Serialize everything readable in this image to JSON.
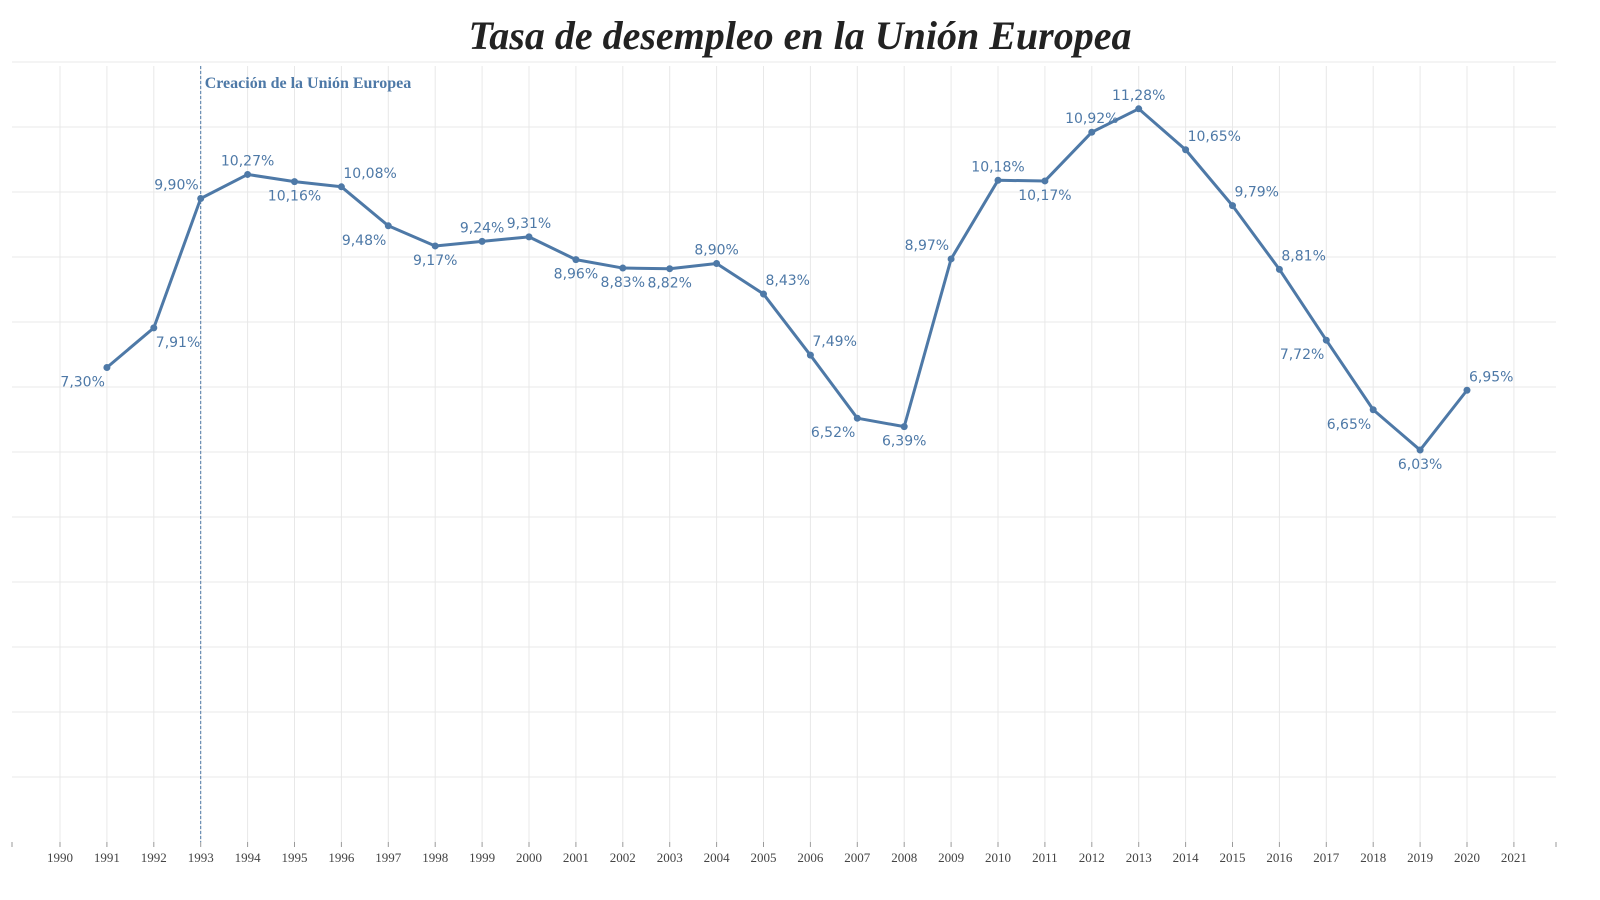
{
  "chart_data": {
    "type": "line",
    "title": "Tasa de desempleo en la Unión Europea",
    "xlabel": "",
    "ylabel": "",
    "x_ticks": [
      "1990",
      "1991",
      "1992",
      "1993",
      "1994",
      "1995",
      "1996",
      "1997",
      "1998",
      "1999",
      "2000",
      "2001",
      "2002",
      "2003",
      "2004",
      "2005",
      "2006",
      "2007",
      "2008",
      "2009",
      "2010",
      "2011",
      "2012",
      "2013",
      "2014",
      "2015",
      "2016",
      "2017",
      "2018",
      "2019",
      "2020",
      "2021"
    ],
    "x_range": [
      1990,
      2021
    ],
    "y_range": [
      0,
      12
    ],
    "grid": true,
    "legend": "none",
    "color": "#4e79a7",
    "series": [
      {
        "x": [
          1991,
          1992,
          1993,
          1994,
          1995,
          1996,
          1997,
          1998,
          1999,
          2000,
          2001,
          2002,
          2003,
          2004,
          2005,
          2006,
          2007,
          2008,
          2009,
          2010,
          2011,
          2012,
          2013,
          2014,
          2015,
          2016,
          2017,
          2018,
          2019,
          2020
        ],
        "values": [
          7.3,
          7.91,
          9.9,
          10.27,
          10.16,
          10.08,
          9.48,
          9.17,
          9.24,
          9.31,
          8.96,
          8.83,
          8.82,
          8.9,
          8.43,
          7.49,
          6.52,
          6.39,
          8.97,
          10.18,
          10.17,
          10.92,
          11.28,
          10.65,
          9.79,
          8.81,
          7.72,
          6.65,
          6.03,
          6.95
        ],
        "labels": [
          "7,30%",
          "7,91%",
          "9,90%",
          "10,27%",
          "10,16%",
          "10,08%",
          "9,48%",
          "9,17%",
          "9,24%",
          "9,31%",
          "8,96%",
          "8,83%",
          "8,82%",
          "8,90%",
          "8,43%",
          "7,49%",
          "6,52%",
          "6,39%",
          "8,97%",
          "10,18%",
          "10,17%",
          "10,92%",
          "11,28%",
          "10,65%",
          "9,79%",
          "8,81%",
          "7,72%",
          "6,65%",
          "6,03%",
          "6,95%"
        ]
      }
    ],
    "annotation": {
      "x": 1993,
      "text": "Creación de la Unión Europea"
    }
  }
}
